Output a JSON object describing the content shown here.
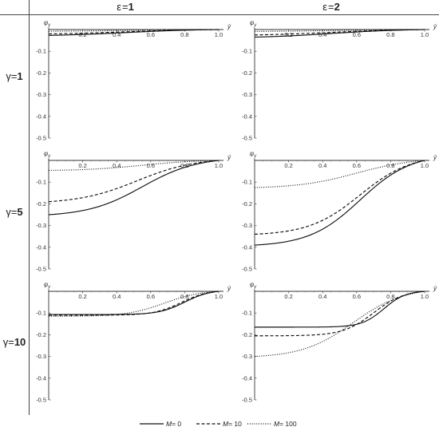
{
  "column_headers": [
    {
      "symbol": "ε",
      "value": "1"
    },
    {
      "symbol": "ε",
      "value": "2"
    }
  ],
  "row_headers": [
    {
      "symbol": "γ",
      "value": "1"
    },
    {
      "symbol": "γ",
      "value": "5"
    },
    {
      "symbol": "γ",
      "value": "10"
    }
  ],
  "legend": [
    {
      "prefix": "M",
      "value": " 0",
      "style": "solid"
    },
    {
      "prefix": "M",
      "value": " 10",
      "style": "dashed"
    },
    {
      "prefix": "M",
      "value": " 100",
      "style": "dotted"
    }
  ],
  "chart_data": {
    "type": "line",
    "xlabel": "ȳ",
    "ylabel": "φ_y",
    "xlim": [
      0,
      1.0
    ],
    "ylim": [
      -0.5,
      0
    ],
    "x_ticks": [
      "0.2",
      "0.4",
      "0.6",
      "0.8",
      "1.0"
    ],
    "y_ticks": [
      "-0.1",
      "-0.2",
      "-0.3",
      "-0.4",
      "-0.5"
    ],
    "panels": [
      {
        "epsilon": "1",
        "gamma": "1",
        "series": [
          {
            "name": "M= 0",
            "style": "solid",
            "y0": -0.027,
            "x_half": 0.45,
            "width": 0.22
          },
          {
            "name": "M= 10",
            "style": "dashed",
            "y0": -0.02,
            "x_half": 0.45,
            "width": 0.22
          },
          {
            "name": "M= 100",
            "style": "dotted",
            "y0": -0.008,
            "x_half": 0.45,
            "width": 0.22
          }
        ]
      },
      {
        "epsilon": "2",
        "gamma": "1",
        "series": [
          {
            "name": "M= 0",
            "style": "solid",
            "y0": -0.035,
            "x_half": 0.45,
            "width": 0.22
          },
          {
            "name": "M= 10",
            "style": "dashed",
            "y0": -0.025,
            "x_half": 0.45,
            "width": 0.22
          },
          {
            "name": "M= 100",
            "style": "dotted",
            "y0": -0.009,
            "x_half": 0.45,
            "width": 0.22
          }
        ]
      },
      {
        "epsilon": "1",
        "gamma": "5",
        "series": [
          {
            "name": "M= 0",
            "style": "solid",
            "y0": -0.25,
            "x_half": 0.55,
            "width": 0.16
          },
          {
            "name": "M= 10",
            "style": "dashed",
            "y0": -0.19,
            "x_half": 0.52,
            "width": 0.17
          },
          {
            "name": "M= 100",
            "style": "dotted",
            "y0": -0.046,
            "x_half": 0.55,
            "width": 0.17
          }
        ]
      },
      {
        "epsilon": "2",
        "gamma": "5",
        "series": [
          {
            "name": "M= 0",
            "style": "solid",
            "y0": -0.39,
            "x_half": 0.62,
            "width": 0.15
          },
          {
            "name": "M= 10",
            "style": "dashed",
            "y0": -0.34,
            "x_half": 0.62,
            "width": 0.15
          },
          {
            "name": "M= 100",
            "style": "dotted",
            "y0": -0.125,
            "x_half": 0.6,
            "width": 0.17
          }
        ]
      },
      {
        "epsilon": "1",
        "gamma": "10",
        "series": [
          {
            "name": "M= 0",
            "style": "solid",
            "y0": -0.107,
            "x_half": 0.8,
            "width": 0.075
          },
          {
            "name": "M= 10",
            "style": "dashed",
            "y0": -0.11,
            "x_half": 0.78,
            "width": 0.08
          },
          {
            "name": "M= 100",
            "style": "dotted",
            "y0": -0.115,
            "x_half": 0.68,
            "width": 0.11
          }
        ]
      },
      {
        "epsilon": "2",
        "gamma": "10",
        "series": [
          {
            "name": "M= 0",
            "style": "solid",
            "y0": -0.165,
            "x_half": 0.76,
            "width": 0.065
          },
          {
            "name": "M= 10",
            "style": "dashed",
            "y0": -0.205,
            "x_half": 0.7,
            "width": 0.09
          },
          {
            "name": "M= 100",
            "style": "dotted",
            "y0": -0.3,
            "x_half": 0.58,
            "width": 0.15
          }
        ]
      }
    ]
  }
}
